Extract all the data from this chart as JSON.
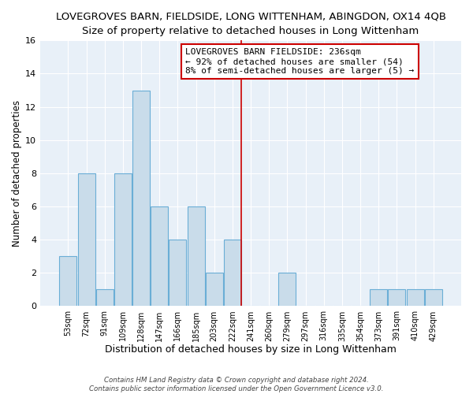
{
  "title": "LOVEGROVES BARN, FIELDSIDE, LONG WITTENHAM, ABINGDON, OX14 4QB",
  "subtitle": "Size of property relative to detached houses in Long Wittenham",
  "xlabel": "Distribution of detached houses by size in Long Wittenham",
  "ylabel": "Number of detached properties",
  "bar_labels": [
    "53sqm",
    "72sqm",
    "91sqm",
    "109sqm",
    "128sqm",
    "147sqm",
    "166sqm",
    "185sqm",
    "203sqm",
    "222sqm",
    "241sqm",
    "260sqm",
    "279sqm",
    "297sqm",
    "316sqm",
    "335sqm",
    "354sqm",
    "373sqm",
    "391sqm",
    "410sqm",
    "429sqm"
  ],
  "bar_values": [
    3,
    8,
    1,
    8,
    13,
    6,
    4,
    6,
    2,
    4,
    0,
    0,
    2,
    0,
    0,
    0,
    0,
    1,
    1,
    1,
    1
  ],
  "bar_color": "#c9dcea",
  "bar_edge_color": "#6aaed6",
  "bar_edge_width": 0.8,
  "vline_x": 9.5,
  "vline_color": "#cc0000",
  "annotation_title": "LOVEGROVES BARN FIELDSIDE: 236sqm",
  "annotation_line1": "← 92% of detached houses are smaller (54)",
  "annotation_line2": "8% of semi-detached houses are larger (5) →",
  "annotation_box_color": "#cc0000",
  "ylim": [
    0,
    16
  ],
  "yticks": [
    0,
    2,
    4,
    6,
    8,
    10,
    12,
    14,
    16
  ],
  "title_fontsize": 9.5,
  "subtitle_fontsize": 9,
  "xlabel_fontsize": 9,
  "ylabel_fontsize": 8.5,
  "footer1": "Contains HM Land Registry data © Crown copyright and database right 2024.",
  "footer2": "Contains public sector information licensed under the Open Government Licence v3.0.",
  "bg_color": "#ffffff",
  "plot_bg_color": "#e8f0f8",
  "grid_color": "#ffffff"
}
